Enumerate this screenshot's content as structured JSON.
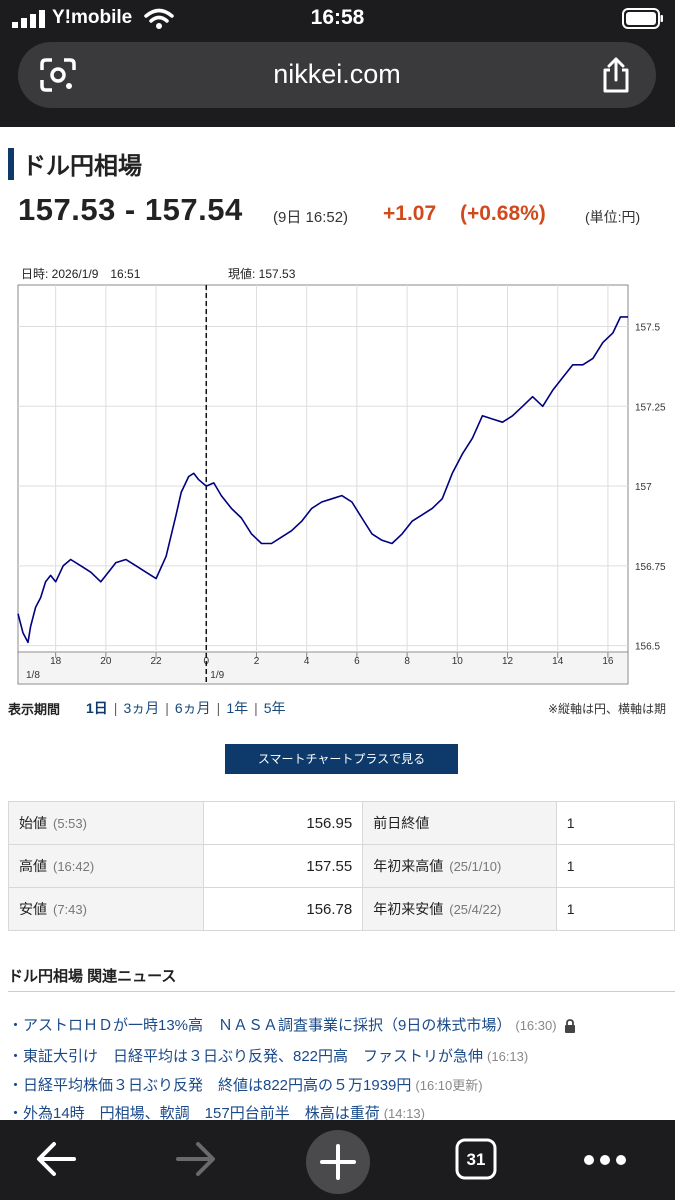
{
  "status_bar": {
    "carrier": "Y!mobile",
    "time": "16:58"
  },
  "browser": {
    "url": "nikkei.com",
    "tab_count": "31"
  },
  "page": {
    "title": "ドル円相場",
    "price_range": "157.53 - 157.54",
    "price_time": "(9日 16:52)",
    "change": "+1.07",
    "change_pct": "(+0.68%)",
    "unit": "(単位:円)",
    "change_color": "#d04a1c",
    "accent_color": "#0d3a6b"
  },
  "chart_info": {
    "datetime": "日時: 2026/1/9　16:51",
    "current": "現値: 157.53"
  },
  "chart_data": {
    "type": "line",
    "title": "",
    "xlabel": "",
    "ylabel": "",
    "x_ticks": [
      "18",
      "20",
      "22",
      "0",
      "2",
      "4",
      "6",
      "8",
      "10",
      "12",
      "14",
      "16"
    ],
    "date_labels": [
      "1/8",
      "1/9"
    ],
    "y_ticks": [
      156.5,
      156.75,
      157,
      157.25,
      157.5
    ],
    "y_tick_labels": [
      "156.5",
      "156.75",
      "157",
      "157.25",
      "157.5"
    ],
    "ylim": [
      156.48,
      157.63
    ],
    "x_range_hours": [
      16.5,
      40.8
    ],
    "crosshair_hour": 24,
    "grid": true,
    "series": [
      {
        "color": "#000080",
        "x": [
          16.5,
          16.7,
          16.9,
          17.0,
          17.2,
          17.4,
          17.6,
          17.8,
          18.0,
          18.3,
          18.6,
          19.0,
          19.4,
          19.8,
          20.0,
          20.4,
          20.8,
          21.2,
          21.6,
          22.0,
          22.4,
          22.8,
          23.0,
          23.3,
          23.5,
          23.7,
          24.0,
          24.3,
          24.6,
          25.0,
          25.4,
          25.8,
          26.2,
          26.6,
          27.0,
          27.4,
          27.8,
          28.2,
          28.6,
          29.0,
          29.4,
          29.8,
          30.2,
          30.6,
          31.0,
          31.4,
          31.8,
          32.2,
          32.6,
          33.0,
          33.4,
          33.8,
          34.2,
          34.6,
          35.0,
          35.4,
          35.8,
          36.2,
          36.6,
          37.0,
          37.4,
          37.8,
          38.2,
          38.6,
          39.0,
          39.4,
          39.8,
          40.2,
          40.5,
          40.8
        ],
        "y": [
          156.6,
          156.54,
          156.51,
          156.56,
          156.62,
          156.65,
          156.7,
          156.72,
          156.7,
          156.75,
          156.77,
          156.75,
          156.73,
          156.7,
          156.72,
          156.76,
          156.77,
          156.75,
          156.73,
          156.71,
          156.78,
          156.91,
          156.98,
          157.03,
          157.04,
          157.02,
          157.0,
          157.01,
          156.97,
          156.93,
          156.9,
          156.85,
          156.82,
          156.82,
          156.84,
          156.86,
          156.89,
          156.93,
          156.95,
          156.96,
          156.97,
          156.95,
          156.9,
          156.85,
          156.83,
          156.82,
          156.85,
          156.89,
          156.91,
          156.93,
          156.96,
          157.04,
          157.1,
          157.15,
          157.22,
          157.21,
          157.2,
          157.22,
          157.25,
          157.28,
          157.25,
          157.3,
          157.34,
          157.38,
          157.38,
          157.4,
          157.45,
          157.48,
          157.53,
          157.53
        ]
      }
    ]
  },
  "period": {
    "label": "表示期間",
    "tabs": [
      "1日",
      "3ヵ月",
      "6ヵ月",
      "1年",
      "5年"
    ],
    "note": "※縦軸は円、横軸は期"
  },
  "smart_chart_button": "スマートチャートプラスで見る",
  "stats": [
    {
      "label": "始値",
      "time": "(5:53)",
      "value": "156.95",
      "label2": "前日終値",
      "time2": "",
      "value2": "1"
    },
    {
      "label": "高値",
      "time": "(16:42)",
      "value": "157.55",
      "label2": "年初来高値",
      "time2": "(25/1/10)",
      "value2": "1"
    },
    {
      "label": "安値",
      "time": "(7:43)",
      "value": "156.78",
      "label2": "年初来安値",
      "time2": "(25/4/22)",
      "value2": "1"
    }
  ],
  "news": {
    "header": "ドル円相場 関連ニュース",
    "items": [
      {
        "title": "・アストロＨＤが一時13%高　ＮＡＳＡ調査事業に採択（9日の株式市場）",
        "time": "(16:30)",
        "locked": true
      },
      {
        "title": "・東証大引け　日経平均は３日ぶり反発、822円高　ファストリが急伸",
        "time": "(16:13)",
        "locked": false
      },
      {
        "title": "・日経平均株価３日ぶり反発　終値は822円高の５万1939円",
        "time": "(16:10更新)",
        "locked": false
      },
      {
        "title": "・外為14時　円相場、軟調　157円台前半　株高は重荷",
        "time": "(14:13)",
        "locked": false
      }
    ]
  },
  "icons": {
    "back": "back-arrow-icon",
    "forward": "forward-arrow-icon",
    "new_tab": "plus-icon",
    "more": "more-dots-icon",
    "share": "share-icon",
    "lens": "lens-icon"
  }
}
